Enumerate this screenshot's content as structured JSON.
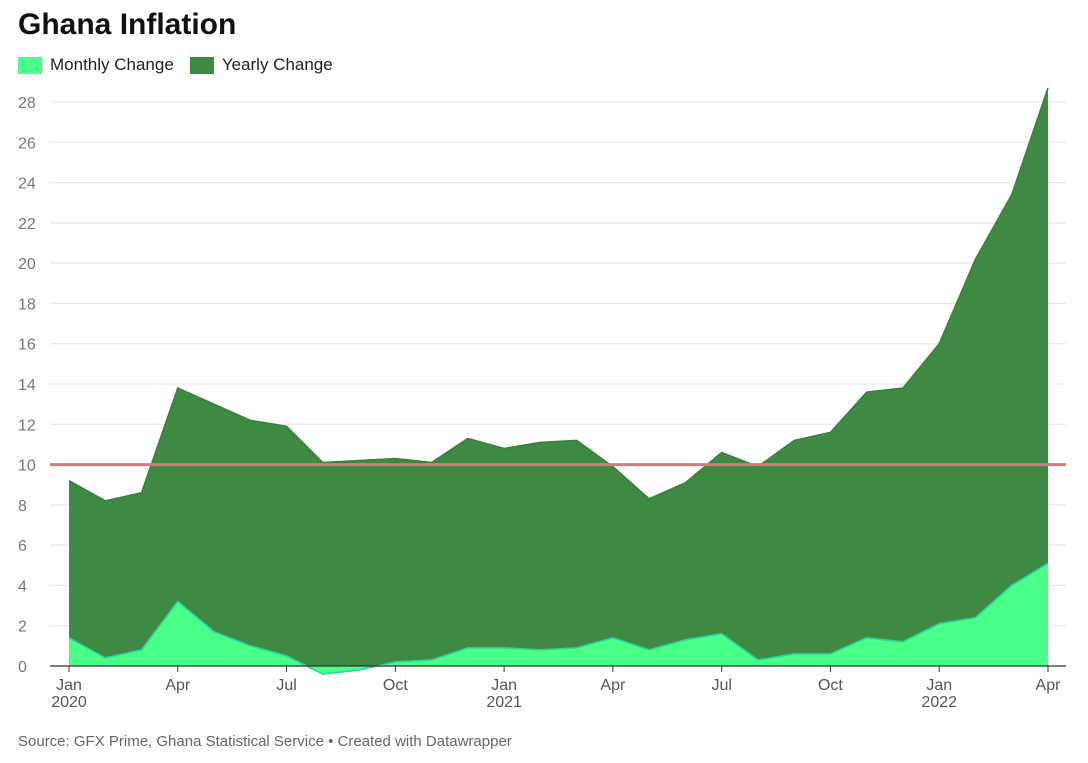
{
  "header": {
    "title": "Ghana Inflation"
  },
  "legend": [
    {
      "label": "Monthly Change",
      "color": "#48ff87"
    },
    {
      "label": "Yearly Change",
      "color": "#3f8a43"
    }
  ],
  "footer": {
    "source": "Source: GFX Prime, Ghana Statistical Service • Created with Datawrapper"
  },
  "chart_data": {
    "type": "area",
    "title": "Ghana Inflation",
    "xlabel": "",
    "ylabel": "",
    "ylim": [
      0,
      28
    ],
    "yticks": [
      0,
      2,
      4,
      6,
      8,
      10,
      12,
      14,
      16,
      18,
      20,
      22,
      24,
      26,
      28
    ],
    "grid": true,
    "legend_position": "top-left",
    "x": [
      "2020-01",
      "2020-02",
      "2020-03",
      "2020-04",
      "2020-05",
      "2020-06",
      "2020-07",
      "2020-08",
      "2020-09",
      "2020-10",
      "2020-11",
      "2020-12",
      "2021-01",
      "2021-02",
      "2021-03",
      "2021-04",
      "2021-05",
      "2021-06",
      "2021-07",
      "2021-08",
      "2021-09",
      "2021-10",
      "2021-11",
      "2021-12",
      "2022-01",
      "2022-02",
      "2022-03",
      "2022-04"
    ],
    "xticks": [
      {
        "index": 0,
        "label": "Jan",
        "sublabel": "2020"
      },
      {
        "index": 3,
        "label": "Apr",
        "sublabel": ""
      },
      {
        "index": 6,
        "label": "Jul",
        "sublabel": ""
      },
      {
        "index": 9,
        "label": "Oct",
        "sublabel": ""
      },
      {
        "index": 12,
        "label": "Jan",
        "sublabel": "2021"
      },
      {
        "index": 15,
        "label": "Apr",
        "sublabel": ""
      },
      {
        "index": 18,
        "label": "Jul",
        "sublabel": ""
      },
      {
        "index": 21,
        "label": "Oct",
        "sublabel": ""
      },
      {
        "index": 24,
        "label": "Jan",
        "sublabel": "2022"
      },
      {
        "index": 27,
        "label": "Apr",
        "sublabel": ""
      }
    ],
    "series": [
      {
        "name": "Yearly Change",
        "color": "#3f8a43",
        "values": [
          9.2,
          8.2,
          8.6,
          13.8,
          13.0,
          12.2,
          11.9,
          10.1,
          10.2,
          10.3,
          10.1,
          11.3,
          10.8,
          11.1,
          11.2,
          9.9,
          8.3,
          9.1,
          10.6,
          9.9,
          11.2,
          11.6,
          13.6,
          13.8,
          16.0,
          20.2,
          23.4,
          28.7
        ]
      },
      {
        "name": "Monthly Change",
        "color": "#48ff87",
        "values": [
          1.4,
          0.4,
          0.8,
          3.2,
          1.7,
          1.0,
          0.5,
          -0.4,
          -0.2,
          0.2,
          0.3,
          0.9,
          0.9,
          0.8,
          0.9,
          1.4,
          0.8,
          1.3,
          1.6,
          0.3,
          0.6,
          0.6,
          1.4,
          1.2,
          2.1,
          2.4,
          4.0,
          5.1
        ]
      }
    ],
    "reference_line": {
      "value": 10,
      "color": "#d9787a"
    }
  }
}
